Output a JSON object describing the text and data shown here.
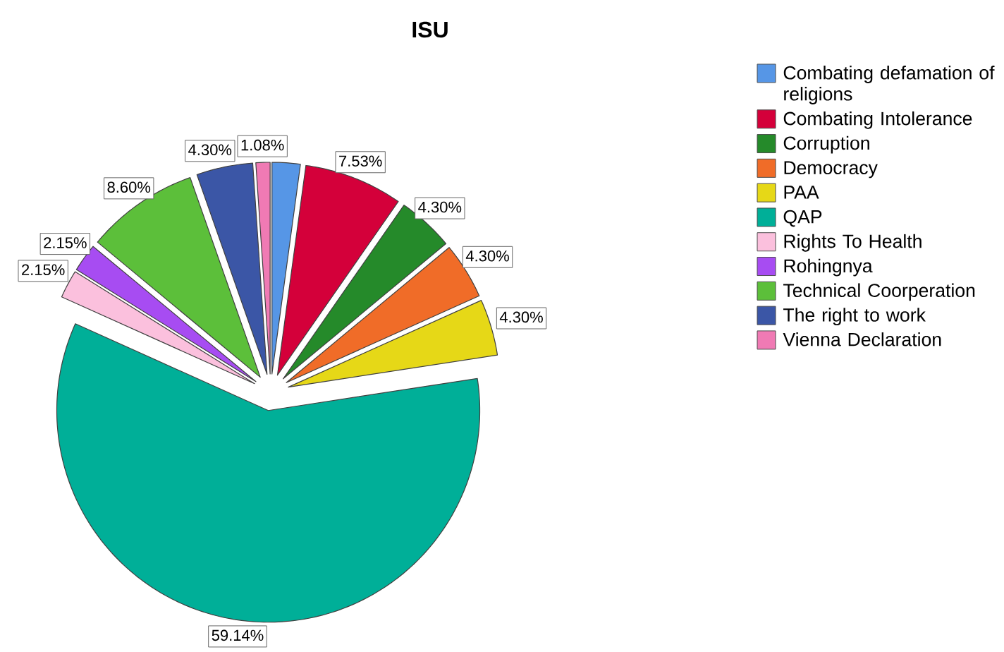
{
  "chart_data": {
    "type": "pie",
    "title": "ISU",
    "categories": [
      "Combating defamation of religions",
      "Combating Intolerance",
      "Corruption",
      "Democracy",
      "PAA",
      "QAP",
      "Rights To Health",
      "Rohingnya",
      "Technical Coorperation",
      "The right to work",
      "Vienna Declaration"
    ],
    "values": [
      2.15,
      7.53,
      4.3,
      4.3,
      4.3,
      59.14,
      2.15,
      2.15,
      8.6,
      4.3,
      1.08
    ],
    "colors": [
      "#5696e6",
      "#d4003a",
      "#258a2a",
      "#f06c28",
      "#e6d817",
      "#00af98",
      "#fbc0dd",
      "#a74cf2",
      "#5cbf3a",
      "#3b56a6",
      "#f07ab4"
    ],
    "value_labels": [
      null,
      "7.53%",
      "4.30%",
      "4.30%",
      "4.30%",
      "59.14%",
      "2.15%",
      "2.15%",
      "8.60%",
      "4.30%",
      "1.08%"
    ],
    "legend": "top right"
  }
}
